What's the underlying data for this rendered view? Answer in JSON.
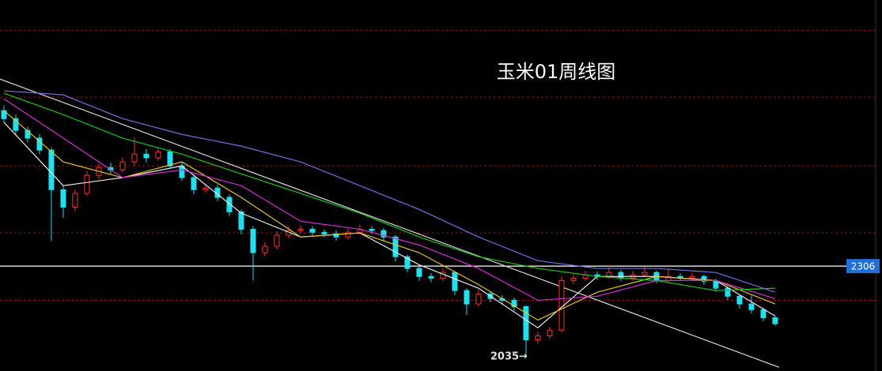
{
  "chart_data": {
    "type": "candlestick",
    "title": "玉米01周线图",
    "xlim": [
      -0.33,
      66.67
    ],
    "ylim": [
      1993,
      3100
    ],
    "grid_lines": [
      3010,
      2810,
      2605,
      2405,
      2204
    ],
    "grid_color": "#9a1010",
    "up_color": "#ff3030",
    "down_color": "#20e0f0",
    "open": [
      2770,
      2746,
      2711,
      2688,
      2652,
      2534,
      2482,
      2523,
      2577,
      2600,
      2593,
      2617,
      2640,
      2629,
      2647,
      2605,
      2570,
      2534,
      2539,
      2511,
      2468,
      2416,
      2346,
      2365,
      2398,
      2412,
      2416,
      2407,
      2402,
      2393,
      2407,
      2416,
      2412,
      2393,
      2334,
      2299,
      2275,
      2270,
      2287,
      2233,
      2193,
      2223,
      2209,
      2204,
      2185,
      2086,
      2098,
      2115,
      2263,
      2270,
      2280,
      2275,
      2287,
      2270,
      2280,
      2287,
      2263,
      2275,
      2270,
      2275,
      2261,
      2240,
      2216,
      2193,
      2176,
      2152
    ],
    "high": [
      2785,
      2758,
      2722,
      2700,
      2660,
      2545,
      2535,
      2590,
      2612,
      2615,
      2630,
      2690,
      2655,
      2660,
      2655,
      2615,
      2580,
      2552,
      2548,
      2520,
      2475,
      2425,
      2378,
      2410,
      2425,
      2428,
      2425,
      2415,
      2412,
      2418,
      2430,
      2425,
      2420,
      2398,
      2340,
      2305,
      2285,
      2300,
      2292,
      2240,
      2235,
      2232,
      2220,
      2212,
      2190,
      2110,
      2125,
      2275,
      2282,
      2292,
      2290,
      2310,
      2295,
      2292,
      2305,
      2292,
      2300,
      2285,
      2285,
      2280,
      2268,
      2245,
      2222,
      2218,
      2182,
      2158
    ],
    "low": [
      2735,
      2700,
      2675,
      2640,
      2381,
      2450,
      2470,
      2515,
      2565,
      2580,
      2585,
      2605,
      2615,
      2620,
      2595,
      2560,
      2520,
      2525,
      2500,
      2455,
      2400,
      2263,
      2335,
      2355,
      2390,
      2402,
      2398,
      2392,
      2382,
      2385,
      2400,
      2402,
      2380,
      2320,
      2288,
      2262,
      2258,
      2262,
      2220,
      2160,
      2185,
      2198,
      2190,
      2172,
      2035,
      2075,
      2088,
      2110,
      2252,
      2262,
      2265,
      2268,
      2260,
      2262,
      2272,
      2255,
      2258,
      2262,
      2262,
      2250,
      2230,
      2205,
      2180,
      2165,
      2142,
      2128
    ],
    "close": [
      2746,
      2711,
      2688,
      2652,
      2534,
      2482,
      2523,
      2577,
      2600,
      2593,
      2617,
      2640,
      2629,
      2647,
      2605,
      2570,
      2534,
      2539,
      2511,
      2468,
      2416,
      2346,
      2365,
      2398,
      2412,
      2416,
      2407,
      2402,
      2393,
      2407,
      2416,
      2412,
      2393,
      2334,
      2299,
      2275,
      2270,
      2287,
      2233,
      2193,
      2223,
      2209,
      2204,
      2185,
      2086,
      2098,
      2115,
      2263,
      2270,
      2280,
      2275,
      2287,
      2270,
      2280,
      2287,
      2263,
      2275,
      2270,
      2275,
      2261,
      2240,
      2216,
      2193,
      2176,
      2152,
      2134
    ],
    "ma_x": [
      0,
      5,
      10,
      15,
      20,
      25,
      30,
      35,
      40,
      45,
      50,
      55,
      60,
      65
    ],
    "series": [
      {
        "color": "#e8e8e8",
        "values": [
          2735,
          2546,
          2570,
          2605,
          2464,
          2393,
          2405,
          2310,
          2240,
          2122,
          2275,
          2275,
          2263,
          2157
        ]
      },
      {
        "color": "#e6c229",
        "values": [
          2770,
          2617,
          2570,
          2617,
          2511,
          2393,
          2405,
          2346,
          2251,
          2145,
          2228,
          2275,
          2263,
          2193
        ]
      },
      {
        "color": "#d030d0",
        "values": [
          2805,
          2688,
          2570,
          2593,
          2546,
          2440,
          2416,
          2369,
          2299,
          2204,
          2216,
          2263,
          2263,
          2209
        ]
      },
      {
        "color": "#19c819",
        "values": [
          2822,
          2758,
          2688,
          2640,
          2581,
          2523,
          2464,
          2393,
          2334,
          2299,
          2275,
          2263,
          2233,
          2240
        ]
      },
      {
        "color": "#7070e0",
        "values": [
          2829,
          2817,
          2746,
          2699,
          2664,
          2617,
          2546,
          2475,
          2393,
          2322,
          2299,
          2299,
          2287,
          2228
        ]
      }
    ],
    "trendline": {
      "color": "#d8d8d8",
      "x": [
        -0.33,
        65.33
      ],
      "values": [
        2864,
        2004
      ]
    },
    "price_line": 2306,
    "low_annotation": {
      "x": 44,
      "value": 2035,
      "label": "2035→"
    }
  }
}
